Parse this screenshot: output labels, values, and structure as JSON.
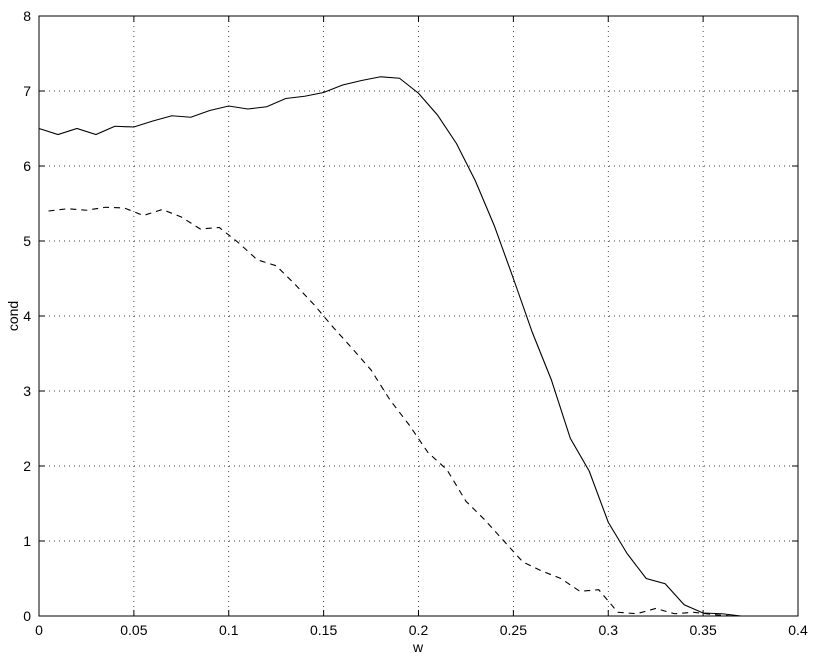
{
  "chart_data": {
    "type": "line",
    "xlabel": "w",
    "ylabel": "cond",
    "xlim": [
      0,
      0.4
    ],
    "ylim": [
      0,
      8
    ],
    "xticks": [
      0,
      0.05,
      0.1,
      0.15,
      0.2,
      0.25,
      0.3,
      0.35,
      0.4
    ],
    "yticks": [
      0,
      1,
      2,
      3,
      4,
      5,
      6,
      7,
      8
    ],
    "grid": true,
    "series": [
      {
        "color": "#000000",
        "dash": "solid",
        "x": [
          0,
          0.01,
          0.02,
          0.03,
          0.04,
          0.05,
          0.06,
          0.07,
          0.08,
          0.09,
          0.1,
          0.11,
          0.12,
          0.13,
          0.14,
          0.15,
          0.16,
          0.17,
          0.18,
          0.19,
          0.2,
          0.21,
          0.22,
          0.23,
          0.24,
          0.25,
          0.26,
          0.27,
          0.28,
          0.29,
          0.3,
          0.31,
          0.32,
          0.33,
          0.34,
          0.35,
          0.36,
          0.37,
          0.38,
          0.39,
          0.4
        ],
        "values": [
          6.5,
          6.42,
          6.5,
          6.42,
          6.53,
          6.52,
          6.6,
          6.67,
          6.65,
          6.74,
          6.8,
          6.76,
          6.79,
          6.9,
          6.93,
          6.98,
          7.08,
          7.14,
          7.19,
          7.17,
          6.97,
          6.68,
          6.3,
          5.8,
          5.2,
          4.5,
          3.78,
          3.15,
          2.37,
          1.93,
          1.25,
          0.83,
          0.5,
          0.43,
          0.15,
          0.04,
          0.03,
          0,
          0,
          0,
          0
        ]
      },
      {
        "color": "#000000",
        "dash": "dashed",
        "x": [
          0.005,
          0.015,
          0.025,
          0.035,
          0.045,
          0.055,
          0.065,
          0.075,
          0.085,
          0.095,
          0.105,
          0.115,
          0.125,
          0.135,
          0.145,
          0.155,
          0.165,
          0.175,
          0.185,
          0.195,
          0.205,
          0.215,
          0.225,
          0.235,
          0.245,
          0.255,
          0.265,
          0.275,
          0.285,
          0.295,
          0.305,
          0.315,
          0.325,
          0.335,
          0.345,
          0.355,
          0.365,
          0.375,
          0.385,
          0.395
        ],
        "values": [
          5.4,
          5.43,
          5.41,
          5.45,
          5.44,
          5.34,
          5.42,
          5.32,
          5.16,
          5.18,
          4.98,
          4.75,
          4.67,
          4.42,
          4.15,
          3.85,
          3.57,
          3.28,
          2.88,
          2.55,
          2.18,
          1.95,
          1.53,
          1.28,
          1.0,
          0.72,
          0.6,
          0.5,
          0.33,
          0.35,
          0.05,
          0.03,
          0.1,
          0.03,
          0.05,
          0.02,
          0,
          0,
          0,
          0
        ]
      }
    ]
  }
}
